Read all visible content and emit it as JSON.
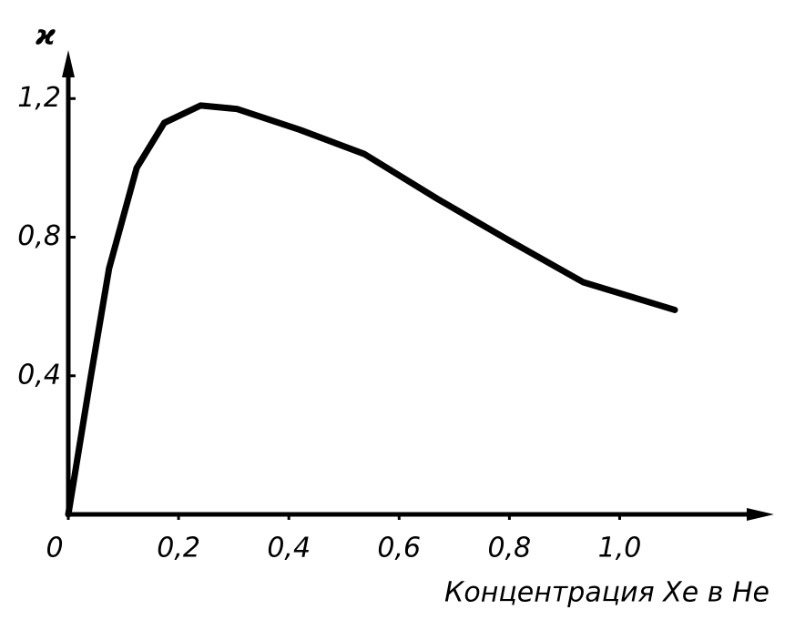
{
  "chart_data": {
    "type": "line",
    "y_label": "ϰ",
    "x_label": "Концентрация Xe в He",
    "x": [
      0,
      0.04,
      0.074,
      0.124,
      0.174,
      0.24,
      0.306,
      0.42,
      0.537,
      0.67,
      0.8,
      0.934,
      1.1
    ],
    "series": [
      {
        "color": "#000000",
        "values": [
          0,
          0.39,
          0.71,
          1.0,
          1.13,
          1.18,
          1.17,
          1.11,
          1.04,
          0.91,
          0.79,
          0.67,
          0.59
        ]
      }
    ],
    "xlim": [
      0,
      1.28
    ],
    "ylim": [
      0,
      1.34
    ],
    "xticks": [
      0,
      {
        "value": 0.2,
        "label": "0,2"
      },
      {
        "value": 0.4,
        "label": "0,4"
      },
      {
        "value": 0.6,
        "label": "0,6"
      },
      {
        "value": 0.8,
        "label": "0,8"
      },
      {
        "value": 1.0,
        "label": "1,0"
      }
    ],
    "yticks": [
      {
        "value": 0.4,
        "label": "0,4"
      },
      {
        "value": 0.8,
        "label": "0,8"
      },
      {
        "value": 1.2,
        "label": "1,2"
      }
    ]
  }
}
